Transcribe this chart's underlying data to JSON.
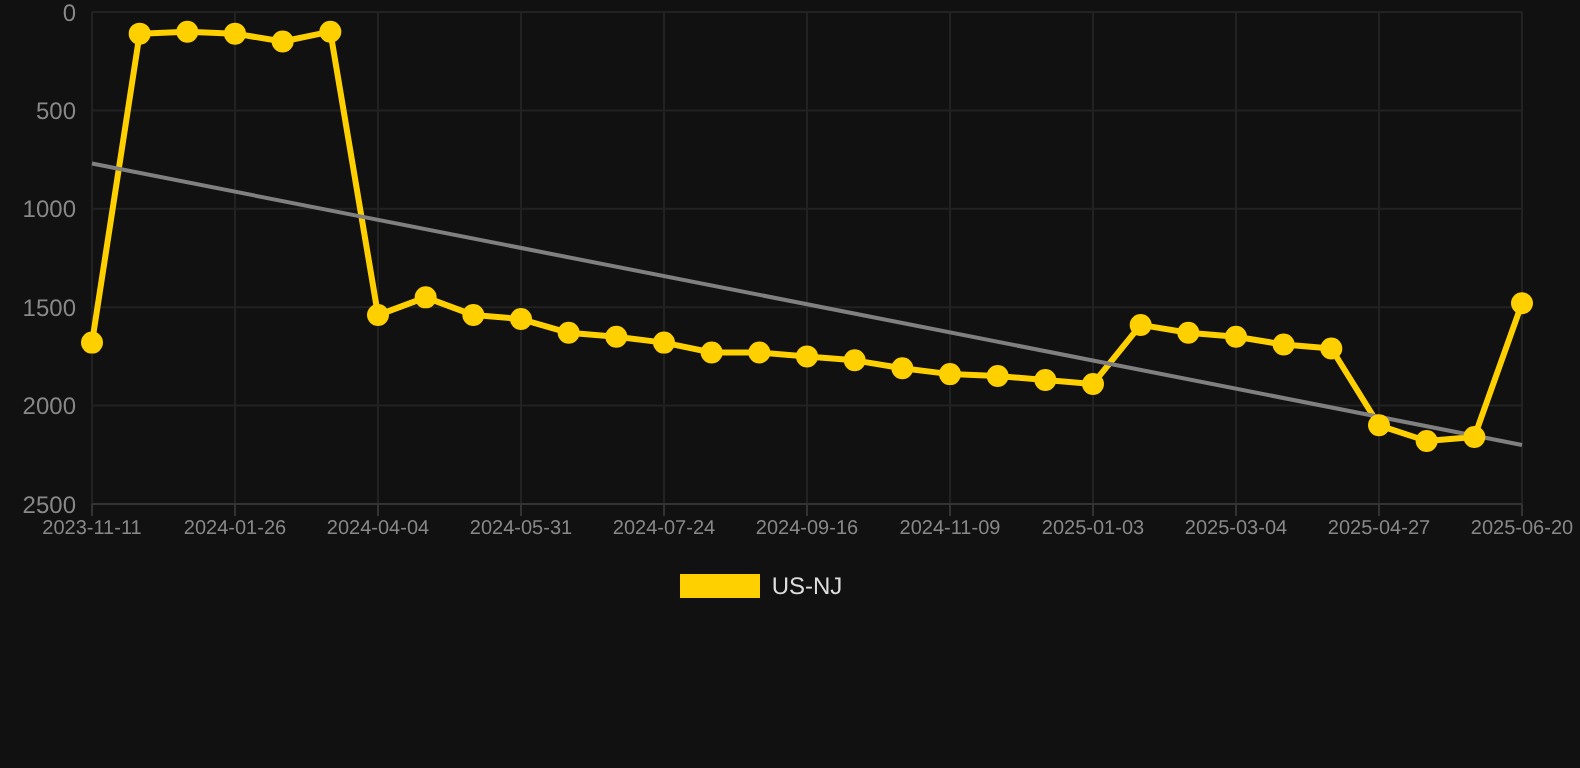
{
  "chart_data": {
    "type": "line",
    "categories": [
      "2023-11-11",
      null,
      null,
      "2024-01-26",
      null,
      null,
      "2024-04-04",
      null,
      null,
      "2024-05-31",
      null,
      null,
      "2024-07-24",
      null,
      null,
      "2024-09-16",
      null,
      null,
      "2024-11-09",
      null,
      null,
      "2025-01-03",
      null,
      null,
      "2025-03-04",
      null,
      null,
      "2025-04-27",
      null,
      null,
      "2025-06-20"
    ],
    "series": [
      {
        "name": "US-NJ",
        "color": "#ffd000",
        "marker": "circle",
        "values": [
          1680,
          110,
          100,
          110,
          150,
          100,
          1540,
          1450,
          1540,
          1560,
          1630,
          1650,
          1680,
          1730,
          1730,
          1750,
          1770,
          1810,
          1840,
          1850,
          1870,
          1890,
          1590,
          1630,
          1650,
          1690,
          1710,
          2100,
          2180,
          2160,
          1480
        ]
      },
      {
        "color": "#808080",
        "marker": "none",
        "values": [
          770,
          null,
          null,
          null,
          null,
          null,
          null,
          null,
          null,
          null,
          null,
          null,
          null,
          null,
          null,
          null,
          null,
          null,
          null,
          null,
          null,
          null,
          null,
          null,
          null,
          null,
          null,
          null,
          null,
          null,
          2200
        ]
      }
    ],
    "ylim": [
      2500,
      0
    ],
    "yticks": [
      0,
      500,
      1000,
      1500,
      2000,
      2500
    ],
    "grid": true,
    "legend": "bottom"
  }
}
